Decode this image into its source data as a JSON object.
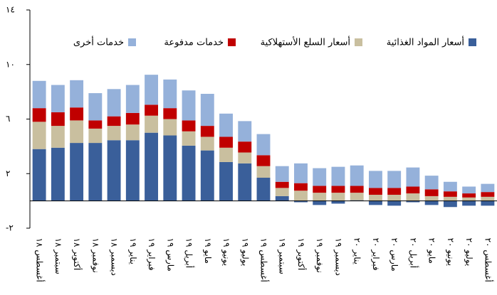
{
  "chart_data": {
    "type": "stacked_bar",
    "categories": [
      "أغسطس ١٨",
      "سبتمبر ١٨",
      "أكتوبر ١٨",
      "نوفمبر ١٨",
      "ديسمبر ١٨",
      "يناير ١٩",
      "فبراير ١٩",
      "مارس ١٩",
      "أبريل ١٩",
      "مايو ١٩",
      "يونيو ١٩",
      "يوليو ١٩",
      "أغسطس ١٩",
      "سبتمبر ١٩",
      "أكتوبر ١٩",
      "نوفمبر ١٩",
      "ديسمبر ١٩",
      "يناير ٢٠",
      "فبراير ٢٠",
      "مارس ٢٠",
      "أبريل ٢٠",
      "مايو ٢٠",
      "يونيو ٢٠",
      "يوليو ٢٠",
      "أغسطس ٢٠"
    ],
    "series": [
      {
        "name": "أسعار المواد الغذائية",
        "color": "#3a5f9a",
        "values": [
          3.8,
          3.9,
          4.25,
          4.25,
          4.45,
          4.45,
          5.0,
          4.8,
          4.05,
          3.7,
          2.85,
          2.75,
          1.7,
          0.35,
          -0.1,
          -0.3,
          -0.2,
          0.05,
          -0.3,
          -0.35,
          -0.1,
          -0.3,
          -0.45,
          -0.35,
          -0.35
        ]
      },
      {
        "name": "أسعار السلع الأستهلاكية",
        "color": "#c9bf9f",
        "values": [
          2.0,
          1.6,
          1.65,
          1.05,
          1.05,
          1.15,
          1.25,
          1.2,
          1.05,
          1.0,
          1.05,
          0.8,
          0.85,
          0.6,
          0.75,
          0.6,
          0.6,
          0.55,
          0.45,
          0.45,
          0.55,
          0.35,
          0.3,
          0.25,
          0.3
        ]
      },
      {
        "name": "خدمات مدفوعة",
        "color": "#c00000",
        "values": [
          1.0,
          1.0,
          0.95,
          0.6,
          0.7,
          0.85,
          0.8,
          0.8,
          0.8,
          0.8,
          0.8,
          0.8,
          0.8,
          0.45,
          0.55,
          0.5,
          0.5,
          0.5,
          0.5,
          0.5,
          0.5,
          0.5,
          0.4,
          0.3,
          0.35
        ]
      },
      {
        "name": "خدمات أخرى",
        "color": "#95b1da",
        "values": [
          2.0,
          2.0,
          2.0,
          2.0,
          2.0,
          2.05,
          2.2,
          2.1,
          2.2,
          2.35,
          1.7,
          1.5,
          1.55,
          1.15,
          1.45,
          1.3,
          1.4,
          1.5,
          1.25,
          1.25,
          1.4,
          1.0,
          0.7,
          0.5,
          0.6
        ]
      }
    ],
    "ylim": [
      -2,
      14
    ],
    "yticks": [
      {
        "value": -2,
        "label": "-٢"
      },
      {
        "value": 2,
        "label": "٢"
      },
      {
        "value": 6,
        "label": "٦"
      },
      {
        "value": 10,
        "label": "١٠"
      },
      {
        "value": 14,
        "label": "١٤"
      }
    ]
  }
}
